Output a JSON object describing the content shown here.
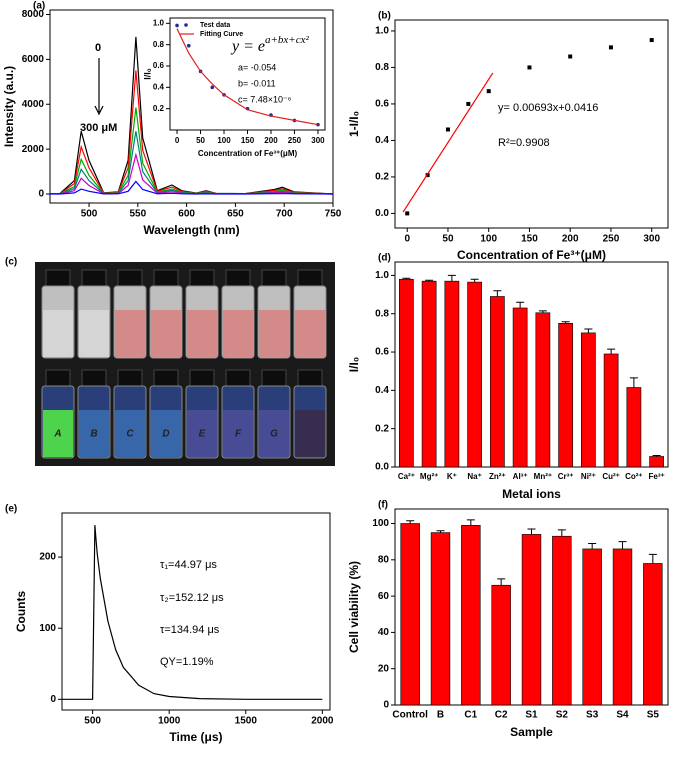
{
  "photo": {
    "label": "(c)",
    "vial_labels": [
      "A",
      "B",
      "C",
      "D",
      "E",
      "F",
      "G"
    ]
  },
  "chart_data": [
    {
      "type": "line",
      "label": "(a)",
      "xlabel": "Wavelength (nm)",
      "ylabel": "Intensity (a.u.)",
      "annotations": [
        "0",
        "300 μM"
      ],
      "xlim": [
        460,
        750
      ],
      "xticks": [
        500,
        550,
        600,
        650,
        700,
        750
      ],
      "ylim": [
        -400,
        8200
      ],
      "yticks": [
        0,
        2000,
        4000,
        6000,
        8000
      ],
      "x": [
        450,
        470,
        485,
        492,
        500,
        515,
        530,
        540,
        548,
        555,
        570,
        585,
        595,
        610,
        620,
        630,
        660,
        690,
        698,
        710,
        750
      ],
      "series": [
        {
          "color": "#000000",
          "values": [
            0,
            20,
            600,
            2800,
            1500,
            50,
            100,
            1500,
            7000,
            2500,
            150,
            400,
            150,
            40,
            150,
            30,
            20,
            200,
            300,
            100,
            0
          ]
        },
        {
          "color": "#ff0000",
          "values": [
            0,
            15,
            470,
            2100,
            1170,
            40,
            80,
            1170,
            5500,
            1950,
            120,
            310,
            120,
            30,
            120,
            25,
            15,
            160,
            230,
            80,
            0
          ]
        },
        {
          "color": "#00aa00",
          "values": [
            0,
            10,
            330,
            1550,
            830,
            30,
            55,
            830,
            3850,
            1380,
            85,
            220,
            85,
            22,
            85,
            15,
            10,
            110,
            170,
            55,
            0
          ]
        },
        {
          "color": "#008080",
          "values": [
            0,
            8,
            240,
            1100,
            600,
            20,
            40,
            600,
            2800,
            1000,
            60,
            160,
            60,
            16,
            60,
            12,
            8,
            80,
            120,
            40,
            0
          ]
        },
        {
          "color": "#cc00cc",
          "values": [
            0,
            5,
            150,
            700,
            380,
            12,
            25,
            380,
            1750,
            630,
            38,
            100,
            38,
            10,
            38,
            8,
            5,
            50,
            75,
            25,
            0
          ]
        },
        {
          "color": "#0000ff",
          "values": [
            0,
            2,
            50,
            220,
            120,
            4,
            8,
            120,
            560,
            200,
            12,
            32,
            12,
            3,
            12,
            2,
            2,
            16,
            24,
            8,
            0
          ]
        }
      ]
    },
    {
      "type": "scatter",
      "xlabel": "Concentration of Fe³⁺(μM)",
      "ylabel": "I/I₀",
      "legend": "upper left",
      "equation": {
        "base": "y = e",
        "exponent": "a+bx+cx²"
      },
      "annotations": [
        "a= -0.054",
        "b= -0.011",
        "c= 7.48×10⁻⁶"
      ],
      "xlim": [
        -15,
        315
      ],
      "xticks": [
        0,
        50,
        100,
        150,
        200,
        250,
        300
      ],
      "ylim": [
        0,
        1.05
      ],
      "yticks": [
        0.2,
        0.4,
        0.6,
        0.8,
        {
          "value": 1,
          "label": "1.0"
        }
      ],
      "x": [
        0,
        25,
        50,
        75,
        100,
        150,
        200,
        250,
        300
      ],
      "series": [
        {
          "name": "Test data",
          "color": "#1f2f8f",
          "mode": "points",
          "marker": "circle",
          "values": [
            0.98,
            0.79,
            0.55,
            0.4,
            0.33,
            0.2,
            0.14,
            0.09,
            0.05
          ]
        },
        {
          "name": "Fitting Curve",
          "color": "#e02020",
          "mode": "line",
          "values": [
            0.95,
            0.72,
            0.55,
            0.43,
            0.33,
            0.19,
            0.13,
            0.09,
            0.05
          ]
        }
      ]
    },
    {
      "type": "scatter",
      "label": "(b)",
      "xlabel": "Concentration of Fe³⁺(μM)",
      "ylabel": "1-I/I₀",
      "annotations": [
        "y= 0.00693x+0.0416",
        "R²=0.9908"
      ],
      "xlim": [
        -15,
        320
      ],
      "xticks": [
        0,
        50,
        100,
        150,
        200,
        250,
        300
      ],
      "ylim": [
        -0.08,
        1.06
      ],
      "yticks": [
        {
          "value": 0,
          "label": "0.0"
        },
        0.2,
        0.4,
        0.6,
        0.8,
        {
          "value": 1,
          "label": "1.0"
        }
      ],
      "series": [
        {
          "color": "#000000",
          "mode": "points",
          "marker": "square",
          "x": [
            0,
            25,
            50,
            75,
            100,
            150,
            200,
            250,
            300
          ],
          "values": [
            0,
            0.21,
            0.46,
            0.6,
            0.67,
            0.8,
            0.86,
            0.91,
            0.95
          ]
        },
        {
          "color": "#ff0000",
          "mode": "line",
          "x": [
            -5,
            105
          ],
          "values": [
            0.007,
            0.77
          ]
        }
      ]
    },
    {
      "type": "bar",
      "label": "(d)",
      "xlabel": "Metal ions",
      "ylabel": "I/I₀",
      "color": "#ff0000",
      "categories": [
        "Ca²⁺",
        "Mg²⁺",
        "K⁺",
        "Na⁺",
        "Zn²⁺",
        "Al³⁺",
        "Mn²⁺",
        "Cr³⁺",
        "Ni²⁺",
        "Cu²⁺",
        "Co²⁺",
        "Fe³⁺"
      ],
      "values": [
        0.98,
        0.97,
        0.97,
        0.965,
        0.89,
        0.83,
        0.805,
        0.75,
        0.7,
        0.59,
        0.415,
        0.055
      ],
      "errors": [
        0.005,
        0.005,
        0.03,
        0.015,
        0.03,
        0.03,
        0.01,
        0.008,
        0.02,
        0.025,
        0.05,
        0.005
      ],
      "ylim": [
        0,
        1.07
      ],
      "yticks": [
        {
          "value": 0,
          "label": "0.0"
        },
        0.2,
        0.4,
        0.6,
        0.8,
        {
          "value": 1,
          "label": "1.0"
        }
      ]
    },
    {
      "type": "line",
      "label": "(e)",
      "xlabel": "Time (μs)",
      "ylabel": "Counts",
      "annotations": [
        "τ₁=44.97 μs",
        "τ₂=152.12 μs",
        "τ=134.94 μs",
        "QY=1.19%"
      ],
      "xlim": [
        300,
        2050
      ],
      "xticks": [
        500,
        1000,
        1500,
        2000
      ],
      "ylim": [
        -15,
        262
      ],
      "yticks": [
        0,
        100,
        200
      ],
      "x": [
        300,
        500,
        515,
        520,
        530,
        550,
        600,
        650,
        700,
        800,
        900,
        1000,
        1200,
        1500,
        2000
      ],
      "series": [
        {
          "color": "#000000",
          "values": [
            0,
            0,
            245,
            230,
            205,
            170,
            110,
            70,
            45,
            20,
            8,
            4,
            1,
            0,
            0
          ]
        }
      ]
    },
    {
      "type": "bar",
      "label": "(f)",
      "xlabel": "Sample",
      "ylabel": "Cell viability (%)",
      "color": "#ff0000",
      "categories": [
        "Control",
        "B",
        "C1",
        "C2",
        "S1",
        "S2",
        "S3",
        "S4",
        "S5"
      ],
      "values": [
        100,
        95,
        99,
        66,
        94,
        93,
        86,
        86,
        78
      ],
      "errors": [
        1.5,
        1,
        3,
        3.5,
        3,
        3.5,
        3,
        4,
        5
      ],
      "ylim": [
        0,
        108
      ],
      "yticks": [
        0,
        20,
        40,
        60,
        80,
        100
      ]
    }
  ]
}
